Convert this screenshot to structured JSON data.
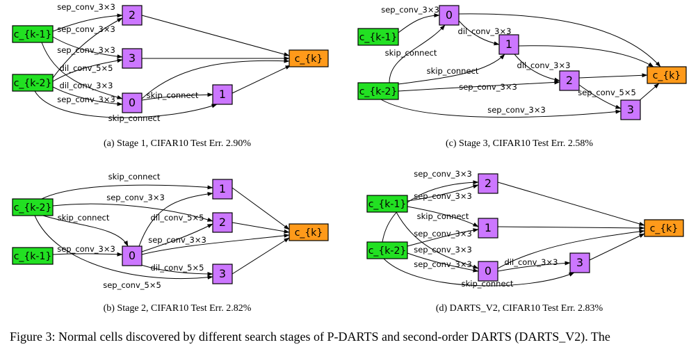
{
  "colors": {
    "input": "#22e022",
    "op": "#cc77ff",
    "output": "#ff9a1a",
    "stroke": "#000000"
  },
  "figure_caption": "Figure 3:  Normal cells discovered by different search stages of P-DARTS and second-order DARTS (DARTS_V2).  The",
  "panels": [
    {
      "id": "a",
      "caption": "(a) Stage 1, CIFAR10 Test Err. 2.90%",
      "nodes": [
        {
          "id": "k1",
          "label": "c_{k-1}",
          "kind": "input"
        },
        {
          "id": "k2",
          "label": "c_{k-2}",
          "kind": "input"
        },
        {
          "id": "n2",
          "label": "2",
          "kind": "op"
        },
        {
          "id": "n3",
          "label": "3",
          "kind": "op"
        },
        {
          "id": "n0",
          "label": "0",
          "kind": "op"
        },
        {
          "id": "n1",
          "label": "1",
          "kind": "op"
        },
        {
          "id": "out",
          "label": "c_{k}",
          "kind": "output"
        }
      ],
      "edges": [
        {
          "from": "k1",
          "to": "n2",
          "label": "sep_conv_3×3"
        },
        {
          "from": "k2",
          "to": "n2",
          "label": "sep_conv_3×3"
        },
        {
          "from": "k1",
          "to": "n3",
          "label": "sep_conv_3×3"
        },
        {
          "from": "k2",
          "to": "n3",
          "label": "dil_conv_5×5"
        },
        {
          "from": "k1",
          "to": "n0",
          "label": "dil_conv_3×3"
        },
        {
          "from": "k2",
          "to": "n0",
          "label": "sep_conv_3×3"
        },
        {
          "from": "n0",
          "to": "n1",
          "label": "skip_connect"
        },
        {
          "from": "k2",
          "to": "n1",
          "label": "skip_connect"
        },
        {
          "from": "n2",
          "to": "out",
          "label": ""
        },
        {
          "from": "n3",
          "to": "out",
          "label": ""
        },
        {
          "from": "n0",
          "to": "out",
          "label": ""
        },
        {
          "from": "n1",
          "to": "out",
          "label": ""
        }
      ]
    },
    {
      "id": "b",
      "caption": "(b) Stage 2, CIFAR10 Test Err. 2.82%",
      "nodes": [
        {
          "id": "k2",
          "label": "c_{k-2}",
          "kind": "input"
        },
        {
          "id": "k1",
          "label": "c_{k-1}",
          "kind": "input"
        },
        {
          "id": "n1",
          "label": "1",
          "kind": "op"
        },
        {
          "id": "n2",
          "label": "2",
          "kind": "op"
        },
        {
          "id": "n0",
          "label": "0",
          "kind": "op"
        },
        {
          "id": "n3",
          "label": "3",
          "kind": "op"
        },
        {
          "id": "out",
          "label": "c_{k}",
          "kind": "output"
        }
      ],
      "edges": [
        {
          "from": "k2",
          "to": "n1",
          "label": "skip_connect"
        },
        {
          "from": "k2",
          "to": "n2",
          "label": "sep_conv_3×3"
        },
        {
          "from": "k2",
          "to": "n0",
          "label": "skip_connect"
        },
        {
          "from": "k1",
          "to": "n0",
          "label": "sep_conv_3×3"
        },
        {
          "from": "n0",
          "to": "n1",
          "label": "dil_conv_5×5"
        },
        {
          "from": "n0",
          "to": "n2",
          "label": "sep_conv_3×3"
        },
        {
          "from": "n0",
          "to": "n3",
          "label": "dil_conv_5×5"
        },
        {
          "from": "k2",
          "to": "n3",
          "label": "sep_conv_5×5"
        },
        {
          "from": "n1",
          "to": "out",
          "label": ""
        },
        {
          "from": "n2",
          "to": "out",
          "label": ""
        },
        {
          "from": "n0",
          "to": "out",
          "label": ""
        },
        {
          "from": "n3",
          "to": "out",
          "label": ""
        }
      ]
    },
    {
      "id": "c",
      "caption": "(c) Stage 3, CIFAR10 Test Err. 2.58%",
      "nodes": [
        {
          "id": "k1",
          "label": "c_{k-1}",
          "kind": "input"
        },
        {
          "id": "k2",
          "label": "c_{k-2}",
          "kind": "input"
        },
        {
          "id": "n0",
          "label": "0",
          "kind": "op"
        },
        {
          "id": "n1",
          "label": "1",
          "kind": "op"
        },
        {
          "id": "n2",
          "label": "2",
          "kind": "op"
        },
        {
          "id": "n3",
          "label": "3",
          "kind": "op"
        },
        {
          "id": "out",
          "label": "c_{k}",
          "kind": "output"
        }
      ],
      "edges": [
        {
          "from": "k1",
          "to": "n0",
          "label": "sep_conv_3×3"
        },
        {
          "from": "k2",
          "to": "n0",
          "label": "skip_connect"
        },
        {
          "from": "n0",
          "to": "n1",
          "label": "dil_conv_3×3"
        },
        {
          "from": "k2",
          "to": "n1",
          "label": "skip_connect"
        },
        {
          "from": "n1",
          "to": "n2",
          "label": "dil_conv_3×3"
        },
        {
          "from": "k2",
          "to": "n2",
          "label": "sep_conv_3×3"
        },
        {
          "from": "n2",
          "to": "n3",
          "label": "sep_conv_5×5"
        },
        {
          "from": "k2",
          "to": "n3",
          "label": "sep_conv_3×3"
        },
        {
          "from": "n0",
          "to": "out",
          "label": ""
        },
        {
          "from": "n1",
          "to": "out",
          "label": ""
        },
        {
          "from": "n2",
          "to": "out",
          "label": ""
        },
        {
          "from": "n3",
          "to": "out",
          "label": ""
        }
      ]
    },
    {
      "id": "d",
      "caption": "(d) DARTS_V2, CIFAR10 Test Err. 2.83%",
      "nodes": [
        {
          "id": "k1",
          "label": "c_{k-1}",
          "kind": "input"
        },
        {
          "id": "k2",
          "label": "c_{k-2}",
          "kind": "input"
        },
        {
          "id": "n2",
          "label": "2",
          "kind": "op"
        },
        {
          "id": "n1",
          "label": "1",
          "kind": "op"
        },
        {
          "id": "n0",
          "label": "0",
          "kind": "op"
        },
        {
          "id": "n3",
          "label": "3",
          "kind": "op"
        },
        {
          "id": "out",
          "label": "c_{k}",
          "kind": "output"
        }
      ],
      "edges": [
        {
          "from": "k2",
          "to": "n2",
          "label": "sep_conv_3×3"
        },
        {
          "from": "k1",
          "to": "n2",
          "label": "sep_conv_3×3"
        },
        {
          "from": "k1",
          "to": "n1",
          "label": "skip_connect"
        },
        {
          "from": "k2",
          "to": "n1",
          "label": "sep_conv_3×3"
        },
        {
          "from": "k1",
          "to": "n0",
          "label": "sep_conv_3×3"
        },
        {
          "from": "k2",
          "to": "n0",
          "label": "sep_conv_3×3"
        },
        {
          "from": "n0",
          "to": "n3",
          "label": "dil_conv_3×3"
        },
        {
          "from": "k2",
          "to": "n3",
          "label": "skip_connect"
        },
        {
          "from": "n2",
          "to": "out",
          "label": ""
        },
        {
          "from": "n1",
          "to": "out",
          "label": ""
        },
        {
          "from": "n0",
          "to": "out",
          "label": ""
        },
        {
          "from": "n3",
          "to": "out",
          "label": ""
        }
      ]
    }
  ]
}
